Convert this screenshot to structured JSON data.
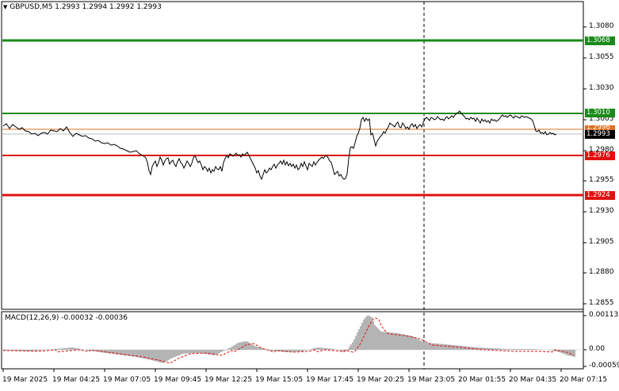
{
  "symbol_header": "GBPUSD,M5  1.2993 1.2994 1.2992 1.2993",
  "symbol_toggle_glyph": "▼",
  "price_axis": {
    "ticks": [
      "1.3080",
      "1.3055",
      "1.3030",
      "1.3005",
      "1.2980",
      "1.2955",
      "1.2930",
      "1.2905",
      "1.2880",
      "1.2855"
    ]
  },
  "price_tags": {
    "green_top": "1.3068",
    "green_mid": "1.3010",
    "orange": "1.2996",
    "current": "1.2993",
    "red_mid": "1.2976",
    "red_bottom": "1.2924"
  },
  "macd": {
    "title": "MACD(12,26,9) -0.00032 -0.00036",
    "ticks": [
      "0.00113",
      "0.00",
      "-0.00059"
    ]
  },
  "time_axis": {
    "labels": [
      "19 Mar 2025",
      "19 Mar 04:25",
      "19 Mar 07:05",
      "19 Mar 09:45",
      "19 Mar 12:25",
      "19 Mar 15:05",
      "19 Mar 17:45",
      "19 Mar 20:25",
      "19 Mar 23:05",
      "20 Mar 01:55",
      "20 Mar 04:35",
      "20 Mar 07:15"
    ]
  },
  "colors": {
    "green_line": "#1a8a1a",
    "red_line": "#e01010",
    "orange_line": "#e07020",
    "price_line": "#000000",
    "macd_hist": "#b4b4b4",
    "macd_signal": "#e01010"
  }
}
